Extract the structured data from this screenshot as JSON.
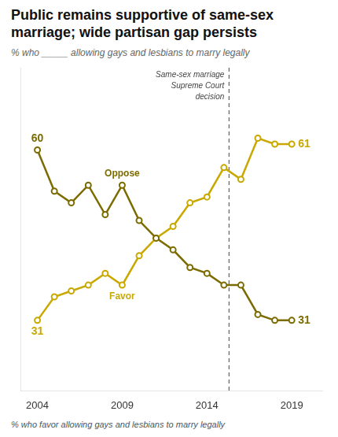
{
  "chart_data": {
    "type": "line",
    "title": [
      "Public remains supportive of same-sex",
      "marriage; wide partisan gap persists"
    ],
    "subtitle": "% who _____ allowing gays and lesbians to marry legally",
    "footnote": "% who favor allowing gays and lesbians to marry legally",
    "x": [
      2004,
      2005,
      2006,
      2007,
      2008,
      2009,
      2010,
      2011,
      2012,
      2013,
      2014,
      2015,
      2016,
      2017,
      2018,
      2019
    ],
    "series": [
      {
        "name": "Oppose",
        "color": "#7B6B00",
        "marker": "circle",
        "values": [
          60,
          53,
          51,
          54,
          49,
          54,
          48,
          45,
          43,
          40,
          39,
          37,
          37,
          32,
          31,
          31
        ],
        "value_labels": [
          "60",
          null,
          null,
          null,
          null,
          null,
          null,
          null,
          null,
          null,
          null,
          null,
          null,
          null,
          null,
          "31"
        ]
      },
      {
        "name": "Favor",
        "color": "#C9A800",
        "marker": "circle",
        "values": [
          31,
          35,
          36,
          37,
          39,
          37,
          42,
          45,
          47,
          51,
          52,
          57,
          55,
          62,
          61,
          61
        ],
        "value_labels": [
          "31",
          null,
          null,
          null,
          null,
          null,
          null,
          null,
          null,
          null,
          null,
          null,
          null,
          null,
          null,
          "61"
        ]
      }
    ],
    "xlim": [
      2003.0,
      2020.8
    ],
    "ylim": [
      19,
      74
    ],
    "xticks": [
      2004,
      2009,
      2014,
      2019
    ],
    "grid": false,
    "tick_labels": "x",
    "annotations": [
      {
        "type": "vline",
        "x": 2015.3,
        "text": "Same-sex marriage\nSupreme Court\ndecision",
        "line_style": "dashed",
        "color": "#555555"
      }
    ]
  }
}
